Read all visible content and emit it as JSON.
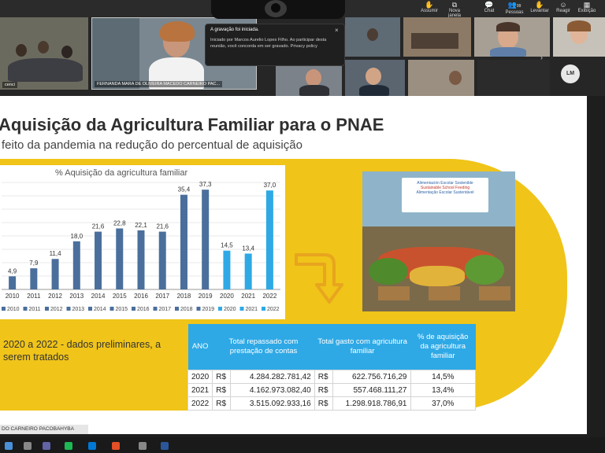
{
  "toolbar": {
    "buttons": [
      {
        "label": "Assumir",
        "icon": "hand-icon"
      },
      {
        "label": "Nova janela",
        "icon": "window-icon"
      },
      {
        "label": "Chat",
        "icon": "chat-icon"
      },
      {
        "label": "Pessoas",
        "icon": "people-icon",
        "badge": "99"
      },
      {
        "label": "Levantar",
        "icon": "raise-hand-icon"
      },
      {
        "label": "Reagir",
        "icon": "react-icon"
      },
      {
        "label": "Exibição",
        "icon": "view-icon"
      }
    ]
  },
  "recording_popup": {
    "title": "A gravação foi iniciada.",
    "body": "Iniciado por Marcos Aurelio Lopes Filho. Ao participar desta reunião, você concorda em ser gravado. Privacy policy"
  },
  "participants": {
    "featured_name": "FERNANDA MARA DE OLIVEIRA MACEDO CARNEIRO PAC...",
    "left_tile_name": "cenci",
    "avatar_initials": "LM"
  },
  "slide": {
    "title": "Aquisição da Agricultura Familiar para o PNAE",
    "subtitle": "feito da pandemia na redução do percentual de aquisição",
    "note": "2020 a 2022 - dados preliminares, a serem tratados",
    "presenter_label": "DO CARNEIRO PACOBAHYBA",
    "photo_banner": [
      "Alimentación Escolar Sostenible",
      "Sustainable School Feeding",
      "Alimentação Escolar Sustentável"
    ]
  },
  "chart_data": {
    "type": "bar",
    "title": "% Aquisição da agricultura familiar",
    "categories": [
      "2010",
      "2011",
      "2012",
      "2013",
      "2014",
      "2015",
      "2016",
      "2017",
      "2018",
      "2019",
      "2020",
      "2021",
      "2022"
    ],
    "values": [
      4.9,
      7.9,
      11.4,
      18.0,
      21.6,
      22.8,
      22.1,
      21.6,
      35.4,
      37.3,
      14.5,
      13.4,
      37.0
    ],
    "value_labels": [
      "4,9",
      "7,9",
      "11,4",
      "18,0",
      "21,6",
      "22,8",
      "22,1",
      "21,6",
      "35,4",
      "37,3",
      "14,5",
      "13,4",
      "37,0"
    ],
    "ylim": [
      0,
      40
    ],
    "grid": true,
    "legend_position": "bottom",
    "colors": {
      "historic": "#4a6f9c",
      "recent": "#2ea9e6"
    }
  },
  "table": {
    "headers": [
      "ANO",
      "Total repassado com prestação de contas",
      "Total gasto com agricultura familiar",
      "% de aquisição da agricultura familiar"
    ],
    "rows": [
      {
        "year": "2020",
        "cur1": "R$",
        "repassado": "4.284.282.781,42",
        "cur2": "R$",
        "gasto": "622.756.716,29",
        "pct": "14,5%"
      },
      {
        "year": "2021",
        "cur1": "R$",
        "repassado": "4.162.973.082,40",
        "cur2": "R$",
        "gasto": "557.468.111,27",
        "pct": "13,4%"
      },
      {
        "year": "2022",
        "cur1": "R$",
        "repassado": "3.515.092.933,16",
        "cur2": "R$",
        "gasto": "1.298.918.786,91",
        "pct": "37,0%"
      }
    ]
  }
}
